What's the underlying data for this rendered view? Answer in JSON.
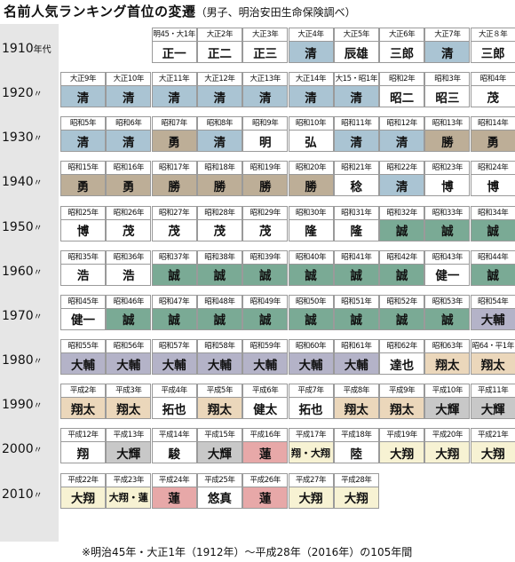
{
  "title": "名前人気ランキング首位の変遷",
  "subtitle": "（男子、明治安田生命保険調べ）",
  "footnote": "※明治45年・大正1年（1912年）〜平成28年（2016年）の105年間",
  "colors": {
    "清": "#aac4d3",
    "勇": "#bdae97",
    "勝": "#bdae97",
    "誠": "#7aaa95",
    "大輔": "#b4b3c8",
    "翔太": "#ebd7bb",
    "大輝": "#c8c8c8",
    "蓮": "#e7a8a8",
    "大翔": "#f7f2d3",
    "翔・大翔": "#f7f2d3",
    "大翔・蓮": "#f7f2d3",
    "default": "#ffffff"
  },
  "chart_data": {
    "type": "table",
    "title": "名前人気ランキング首位の変遷",
    "subtitle": "（男子、明治安田生命保険調べ）",
    "decades": [
      {
        "label": "1910",
        "suffix": "年代",
        "cells": [
          {
            "col": 3,
            "year": "明45・大1年",
            "name": "正一"
          },
          {
            "col": 4,
            "year": "大正2年",
            "name": "正二"
          },
          {
            "col": 5,
            "year": "大正3年",
            "name": "正三"
          },
          {
            "col": 6,
            "year": "大正4年",
            "name": "清"
          },
          {
            "col": 7,
            "year": "大正5年",
            "name": "辰雄"
          },
          {
            "col": 8,
            "year": "大正6年",
            "name": "三郎"
          },
          {
            "col": 9,
            "year": "大正7年",
            "name": "清"
          },
          {
            "col": 10,
            "year": "大正８年",
            "name": "三郎"
          }
        ]
      },
      {
        "label": "1920",
        "suffix": "〃",
        "cells": [
          {
            "col": 1,
            "year": "大正9年",
            "name": "清"
          },
          {
            "col": 2,
            "year": "大正10年",
            "name": "清"
          },
          {
            "col": 3,
            "year": "大正11年",
            "name": "清"
          },
          {
            "col": 4,
            "year": "大正12年",
            "name": "清"
          },
          {
            "col": 5,
            "year": "大正13年",
            "name": "清"
          },
          {
            "col": 6,
            "year": "大正14年",
            "name": "清"
          },
          {
            "col": 7,
            "year": "大15・昭1年",
            "name": "清"
          },
          {
            "col": 8,
            "year": "昭和2年",
            "name": "昭二"
          },
          {
            "col": 9,
            "year": "昭和3年",
            "name": "昭三"
          },
          {
            "col": 10,
            "year": "昭和4年",
            "name": "茂"
          }
        ]
      },
      {
        "label": "1930",
        "suffix": "〃",
        "cells": [
          {
            "col": 1,
            "year": "昭和5年",
            "name": "清"
          },
          {
            "col": 2,
            "year": "昭和6年",
            "name": "清"
          },
          {
            "col": 3,
            "year": "昭和7年",
            "name": "勇"
          },
          {
            "col": 4,
            "year": "昭和8年",
            "name": "清"
          },
          {
            "col": 5,
            "year": "昭和9年",
            "name": "明"
          },
          {
            "col": 6,
            "year": "昭和10年",
            "name": "弘"
          },
          {
            "col": 7,
            "year": "昭和11年",
            "name": "清"
          },
          {
            "col": 8,
            "year": "昭和12年",
            "name": "清"
          },
          {
            "col": 9,
            "year": "昭和13年",
            "name": "勝"
          },
          {
            "col": 10,
            "year": "昭和14年",
            "name": "勇"
          }
        ]
      },
      {
        "label": "1940",
        "suffix": "〃",
        "cells": [
          {
            "col": 1,
            "year": "昭和15年",
            "name": "勇"
          },
          {
            "col": 2,
            "year": "昭和16年",
            "name": "勇"
          },
          {
            "col": 3,
            "year": "昭和17年",
            "name": "勝"
          },
          {
            "col": 4,
            "year": "昭和18年",
            "name": "勝"
          },
          {
            "col": 5,
            "year": "昭和19年",
            "name": "勝"
          },
          {
            "col": 6,
            "year": "昭和20年",
            "name": "勝"
          },
          {
            "col": 7,
            "year": "昭和21年",
            "name": "稔"
          },
          {
            "col": 8,
            "year": "昭和22年",
            "name": "清"
          },
          {
            "col": 9,
            "year": "昭和23年",
            "name": "博"
          },
          {
            "col": 10,
            "year": "昭和24年",
            "name": "博"
          }
        ]
      },
      {
        "label": "1950",
        "suffix": "〃",
        "cells": [
          {
            "col": 1,
            "year": "昭和25年",
            "name": "博"
          },
          {
            "col": 2,
            "year": "昭和26年",
            "name": "茂"
          },
          {
            "col": 3,
            "year": "昭和27年",
            "name": "茂"
          },
          {
            "col": 4,
            "year": "昭和28年",
            "name": "茂"
          },
          {
            "col": 5,
            "year": "昭和29年",
            "name": "茂"
          },
          {
            "col": 6,
            "year": "昭和30年",
            "name": "隆"
          },
          {
            "col": 7,
            "year": "昭和31年",
            "name": "隆"
          },
          {
            "col": 8,
            "year": "昭和32年",
            "name": "誠"
          },
          {
            "col": 9,
            "year": "昭和33年",
            "name": "誠"
          },
          {
            "col": 10,
            "year": "昭和34年",
            "name": "誠"
          }
        ]
      },
      {
        "label": "1960",
        "suffix": "〃",
        "cells": [
          {
            "col": 1,
            "year": "昭和35年",
            "name": "浩"
          },
          {
            "col": 2,
            "year": "昭和36年",
            "name": "浩"
          },
          {
            "col": 3,
            "year": "昭和37年",
            "name": "誠"
          },
          {
            "col": 4,
            "year": "昭和38年",
            "name": "誠"
          },
          {
            "col": 5,
            "year": "昭和39年",
            "name": "誠"
          },
          {
            "col": 6,
            "year": "昭和40年",
            "name": "誠"
          },
          {
            "col": 7,
            "year": "昭和41年",
            "name": "誠"
          },
          {
            "col": 8,
            "year": "昭和42年",
            "name": "誠"
          },
          {
            "col": 9,
            "year": "昭和43年",
            "name": "健一"
          },
          {
            "col": 10,
            "year": "昭和44年",
            "name": "誠"
          }
        ]
      },
      {
        "label": "1970",
        "suffix": "〃",
        "cells": [
          {
            "col": 1,
            "year": "昭和45年",
            "name": "健一"
          },
          {
            "col": 2,
            "year": "昭和46年",
            "name": "誠"
          },
          {
            "col": 3,
            "year": "昭和47年",
            "name": "誠"
          },
          {
            "col": 4,
            "year": "昭和48年",
            "name": "誠"
          },
          {
            "col": 5,
            "year": "昭和49年",
            "name": "誠"
          },
          {
            "col": 6,
            "year": "昭和50年",
            "name": "誠"
          },
          {
            "col": 7,
            "year": "昭和51年",
            "name": "誠"
          },
          {
            "col": 8,
            "year": "昭和52年",
            "name": "誠"
          },
          {
            "col": 9,
            "year": "昭和53年",
            "name": "誠"
          },
          {
            "col": 10,
            "year": "昭和54年",
            "name": "大輔"
          }
        ]
      },
      {
        "label": "1980",
        "suffix": "〃",
        "cells": [
          {
            "col": 1,
            "year": "昭和55年",
            "name": "大輔"
          },
          {
            "col": 2,
            "year": "昭和56年",
            "name": "大輔"
          },
          {
            "col": 3,
            "year": "昭和57年",
            "name": "大輔"
          },
          {
            "col": 4,
            "year": "昭和58年",
            "name": "大輔"
          },
          {
            "col": 5,
            "year": "昭和59年",
            "name": "大輔"
          },
          {
            "col": 6,
            "year": "昭和60年",
            "name": "大輔"
          },
          {
            "col": 7,
            "year": "昭和61年",
            "name": "大輔"
          },
          {
            "col": 8,
            "year": "昭和62年",
            "name": "達也"
          },
          {
            "col": 9,
            "year": "昭和63年",
            "name": "翔太"
          },
          {
            "col": 10,
            "year": "昭64・平1年",
            "name": "翔太"
          }
        ]
      },
      {
        "label": "1990",
        "suffix": "〃",
        "cells": [
          {
            "col": 1,
            "year": "平成2年",
            "name": "翔太"
          },
          {
            "col": 2,
            "year": "平成3年",
            "name": "翔太"
          },
          {
            "col": 3,
            "year": "平成4年",
            "name": "拓也"
          },
          {
            "col": 4,
            "year": "平成5年",
            "name": "翔太"
          },
          {
            "col": 5,
            "year": "平成6年",
            "name": "健太"
          },
          {
            "col": 6,
            "year": "平成7年",
            "name": "拓也"
          },
          {
            "col": 7,
            "year": "平成8年",
            "name": "翔太"
          },
          {
            "col": 8,
            "year": "平成9年",
            "name": "翔太"
          },
          {
            "col": 9,
            "year": "平成10年",
            "name": "大輝"
          },
          {
            "col": 10,
            "year": "平成11年",
            "name": "大輝"
          }
        ]
      },
      {
        "label": "2000",
        "suffix": "〃",
        "cells": [
          {
            "col": 1,
            "year": "平成12年",
            "name": "翔"
          },
          {
            "col": 2,
            "year": "平成13年",
            "name": "大輝"
          },
          {
            "col": 3,
            "year": "平成14年",
            "name": "駿"
          },
          {
            "col": 4,
            "year": "平成15年",
            "name": "大輝"
          },
          {
            "col": 5,
            "year": "平成16年",
            "name": "蓮"
          },
          {
            "col": 6,
            "year": "平成17年",
            "name": "翔・大翔"
          },
          {
            "col": 7,
            "year": "平成18年",
            "name": "陸"
          },
          {
            "col": 8,
            "year": "平成19年",
            "name": "大翔"
          },
          {
            "col": 9,
            "year": "平成20年",
            "name": "大翔"
          },
          {
            "col": 10,
            "year": "平成21年",
            "name": "大翔"
          }
        ]
      },
      {
        "label": "2010",
        "suffix": "〃",
        "cells": [
          {
            "col": 1,
            "year": "平成22年",
            "name": "大翔"
          },
          {
            "col": 2,
            "year": "平成23年",
            "name": "大翔・蓮"
          },
          {
            "col": 3,
            "year": "平成24年",
            "name": "蓮"
          },
          {
            "col": 4,
            "year": "平成25年",
            "name": "悠真"
          },
          {
            "col": 5,
            "year": "平成26年",
            "name": "蓮"
          },
          {
            "col": 6,
            "year": "平成27年",
            "name": "大翔"
          },
          {
            "col": 7,
            "year": "平成28年",
            "name": "大翔"
          }
        ]
      }
    ]
  }
}
